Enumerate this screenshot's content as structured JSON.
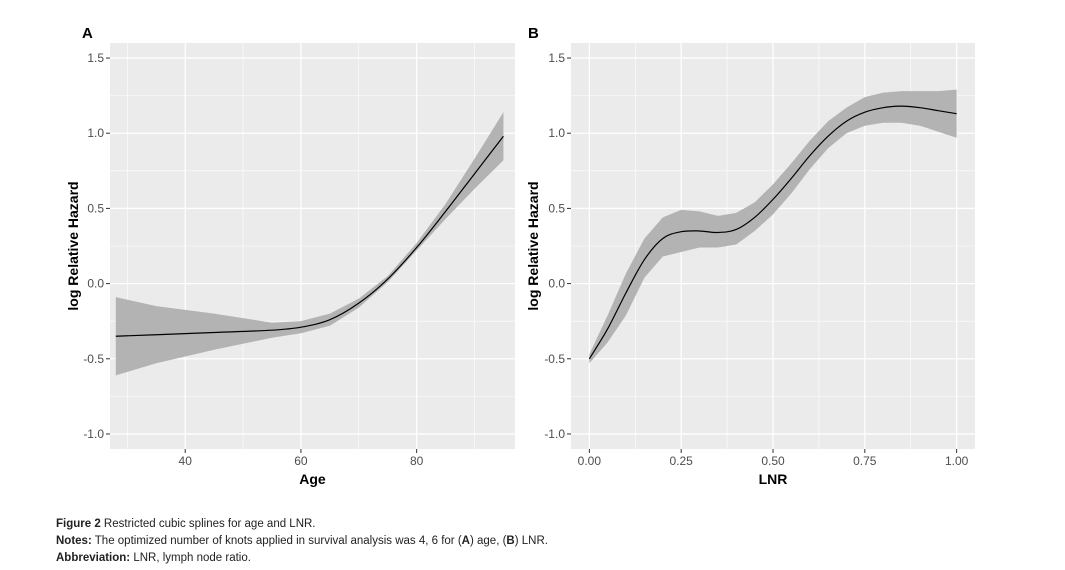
{
  "chart_data": [
    {
      "type": "line",
      "panel_label": "A",
      "xlabel": "Age",
      "ylabel": "log Relative Hazard",
      "xlim": [
        27,
        97
      ],
      "ylim": [
        -1.1,
        1.6
      ],
      "xticks": [
        40,
        60,
        80
      ],
      "xtick_labels": [
        "40",
        "60",
        "80"
      ],
      "yticks": [
        -1.0,
        -0.5,
        0.0,
        0.5,
        1.0,
        1.5
      ],
      "ytick_labels": [
        "-1.0",
        "-0.5",
        "0.0",
        "0.5",
        "1.0",
        "1.5"
      ],
      "grid": true,
      "series": [
        {
          "x": [
            28,
            35,
            45,
            55,
            60,
            65,
            70,
            75,
            80,
            85,
            90,
            95
          ],
          "y": [
            -0.35,
            -0.34,
            -0.325,
            -0.31,
            -0.29,
            -0.24,
            -0.13,
            0.03,
            0.24,
            0.48,
            0.73,
            0.98
          ],
          "lower": [
            -0.61,
            -0.53,
            -0.44,
            -0.36,
            -0.33,
            -0.28,
            -0.16,
            0.01,
            0.22,
            0.43,
            0.63,
            0.82
          ],
          "upper": [
            -0.09,
            -0.15,
            -0.2,
            -0.26,
            -0.25,
            -0.2,
            -0.1,
            0.05,
            0.27,
            0.53,
            0.83,
            1.14
          ]
        }
      ],
      "colors": {
        "line": "#000000",
        "band": "#b3b3b3",
        "panel": "#ebebeb",
        "grid": "#ffffff"
      }
    },
    {
      "type": "line",
      "panel_label": "B",
      "xlabel": "LNR",
      "ylabel": "log Relative Hazard",
      "xlim": [
        -0.05,
        1.05
      ],
      "ylim": [
        -1.1,
        1.6
      ],
      "xticks": [
        0.0,
        0.25,
        0.5,
        0.75,
        1.0
      ],
      "xtick_labels": [
        "0.00",
        "0.25",
        "0.50",
        "0.75",
        "1.00"
      ],
      "yticks": [
        -1.0,
        -0.5,
        0.0,
        0.5,
        1.0,
        1.5
      ],
      "ytick_labels": [
        "-1.0",
        "-0.5",
        "0.0",
        "0.5",
        "1.0",
        "1.5"
      ],
      "grid": true,
      "series": [
        {
          "x": [
            0.0,
            0.05,
            0.1,
            0.15,
            0.2,
            0.25,
            0.3,
            0.35,
            0.4,
            0.45,
            0.5,
            0.55,
            0.6,
            0.65,
            0.7,
            0.75,
            0.8,
            0.85,
            0.9,
            0.95,
            1.0
          ],
          "y": [
            -0.5,
            -0.3,
            -0.06,
            0.16,
            0.3,
            0.345,
            0.35,
            0.34,
            0.36,
            0.44,
            0.56,
            0.7,
            0.85,
            0.98,
            1.08,
            1.14,
            1.17,
            1.18,
            1.17,
            1.15,
            1.13
          ],
          "lower": [
            -0.53,
            -0.39,
            -0.21,
            0.04,
            0.18,
            0.21,
            0.24,
            0.24,
            0.26,
            0.35,
            0.46,
            0.6,
            0.76,
            0.9,
            1.0,
            1.05,
            1.07,
            1.07,
            1.05,
            1.01,
            0.97
          ],
          "upper": [
            -0.47,
            -0.21,
            0.07,
            0.3,
            0.44,
            0.49,
            0.48,
            0.45,
            0.47,
            0.54,
            0.66,
            0.8,
            0.95,
            1.08,
            1.17,
            1.24,
            1.27,
            1.28,
            1.28,
            1.28,
            1.29
          ]
        }
      ],
      "colors": {
        "line": "#000000",
        "band": "#b3b3b3",
        "panel": "#ebebeb",
        "grid": "#ffffff"
      }
    }
  ],
  "caption": {
    "figure_label": "Figure 2",
    "figure_text": " Restricted cubic splines for age and LNR.",
    "notes_label": "Notes:",
    "notes_text_1": " The optimized number of knots applied in survival analysis was 4, 6 for (",
    "notes_a": "A",
    "notes_text_2": ") age, (",
    "notes_b": "B",
    "notes_text_3": ") LNR.",
    "abbrev_label": "Abbreviation:",
    "abbrev_text": " LNR, lymph node ratio."
  }
}
